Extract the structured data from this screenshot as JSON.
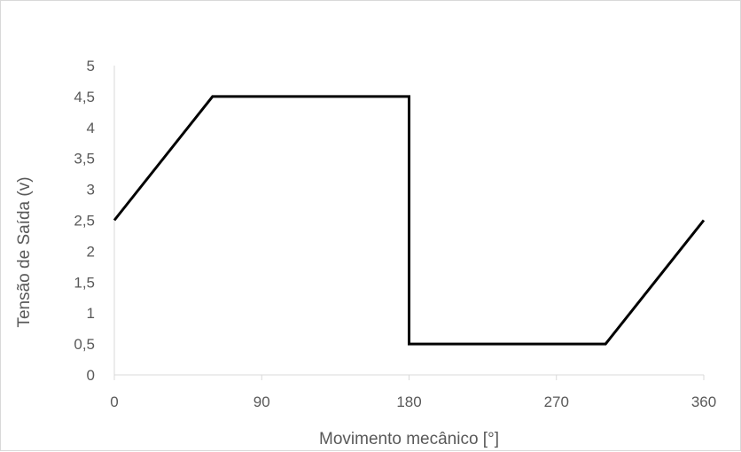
{
  "chart_data": {
    "type": "line",
    "title": "",
    "xlabel": "Movimento mecânico [°]",
    "ylabel": "Tensão de Saída (v)",
    "xlim": [
      0,
      360
    ],
    "ylim": [
      0,
      5
    ],
    "xticks": [
      0,
      90,
      180,
      270,
      360
    ],
    "xtick_labels": [
      "0",
      "90",
      "180",
      "270",
      "360"
    ],
    "yticks": [
      0,
      0.5,
      1,
      1.5,
      2,
      2.5,
      3,
      3.5,
      4,
      4.5,
      5
    ],
    "ytick_labels": [
      "0",
      "0,5",
      "1",
      "1,5",
      "2",
      "2,5",
      "3",
      "3,5",
      "4",
      "4,5",
      "5"
    ],
    "grid": false,
    "legend": "none",
    "series": [
      {
        "color": "#000000",
        "x": [
          0,
          60,
          180,
          180,
          300,
          360
        ],
        "y": [
          2.5,
          4.5,
          4.5,
          0.5,
          0.5,
          2.5
        ]
      }
    ]
  }
}
